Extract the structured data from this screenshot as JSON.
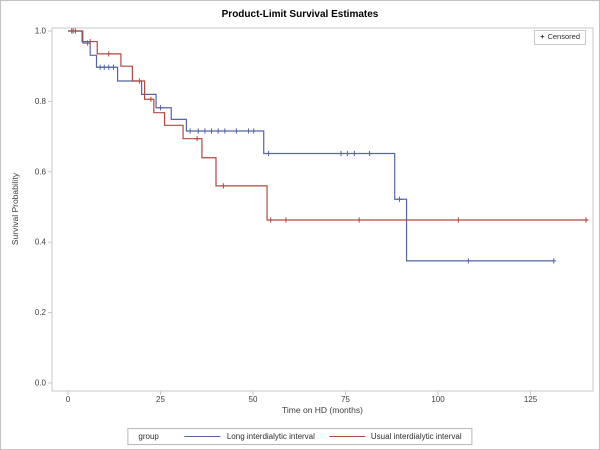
{
  "chart_data": {
    "type": "line",
    "subtype": "kaplan-meier-step",
    "title": "Product-Limit Survival Estimates",
    "xlabel": "Time on HD (months)",
    "ylabel": "Survival Probability",
    "x_ticks": {
      "values": [
        0,
        25,
        50,
        75,
        100,
        125
      ],
      "labels": [
        "0",
        "25",
        "50",
        "75",
        "100",
        "125"
      ]
    },
    "y_ticks": {
      "values": [
        0.0,
        0.2,
        0.4,
        0.6,
        0.8,
        1.0
      ],
      "labels": [
        "0.0",
        "0.2",
        "0.4",
        "0.6",
        "0.8",
        "1.0"
      ]
    },
    "xlim": [
      -4,
      142
    ],
    "ylim": [
      -0.02,
      1.02
    ],
    "grid": false,
    "legend_position": "bottom",
    "censored_legend": {
      "marker": "+",
      "label": "Censored"
    },
    "legend": {
      "title": "group"
    },
    "series": [
      {
        "name": "Long interdialytic interval",
        "color": "#5565A4",
        "start": [
          0,
          1.0
        ],
        "drops": [
          [
            4,
            0.966
          ],
          [
            6,
            0.931
          ],
          [
            7.7,
            0.897
          ],
          [
            13.4,
            0.858
          ],
          [
            19.9,
            0.82
          ],
          [
            23.8,
            0.782
          ],
          [
            27.9,
            0.749
          ],
          [
            32,
            0.716
          ],
          [
            52.9,
            0.652
          ],
          [
            88.3,
            0.522
          ],
          [
            91.5,
            0.347
          ]
        ],
        "end_time": 131.3,
        "censors": [
          [
            1,
            1.0
          ],
          [
            2,
            1.0
          ],
          [
            5.3,
            0.966
          ],
          [
            8.7,
            0.897
          ],
          [
            9.8,
            0.897
          ],
          [
            11,
            0.897
          ],
          [
            12.3,
            0.897
          ],
          [
            19.3,
            0.858
          ],
          [
            25,
            0.782
          ],
          [
            33,
            0.716
          ],
          [
            35.2,
            0.716
          ],
          [
            37,
            0.716
          ],
          [
            38.8,
            0.716
          ],
          [
            40.6,
            0.716
          ],
          [
            42.4,
            0.716
          ],
          [
            45.5,
            0.716
          ],
          [
            48.8,
            0.716
          ],
          [
            50.2,
            0.716
          ],
          [
            54.2,
            0.652
          ],
          [
            73.8,
            0.652
          ],
          [
            75.5,
            0.652
          ],
          [
            77.4,
            0.652
          ],
          [
            81.5,
            0.652
          ],
          [
            89.6,
            0.522
          ],
          [
            108.2,
            0.347
          ],
          [
            131.3,
            0.347
          ]
        ]
      },
      {
        "name": "Usual interdialytic interval",
        "color": "#B0493F",
        "start": [
          0,
          1.0
        ],
        "drops": [
          [
            3.8,
            0.97
          ],
          [
            7.9,
            0.935
          ],
          [
            14.3,
            0.9
          ],
          [
            17.4,
            0.858
          ],
          [
            20.7,
            0.806
          ],
          [
            23.2,
            0.768
          ],
          [
            26.1,
            0.732
          ],
          [
            31.1,
            0.694
          ],
          [
            36.2,
            0.64
          ],
          [
            40,
            0.56
          ],
          [
            53.8,
            0.463
          ]
        ],
        "end_time": 140.5,
        "censors": [
          [
            1.4,
            1.0
          ],
          [
            6,
            0.97
          ],
          [
            11,
            0.935
          ],
          [
            22.4,
            0.806
          ],
          [
            34.9,
            0.694
          ],
          [
            42,
            0.56
          ],
          [
            54.8,
            0.463
          ],
          [
            58.9,
            0.463
          ],
          [
            78.7,
            0.463
          ],
          [
            105.5,
            0.463
          ],
          [
            140,
            0.463
          ]
        ]
      }
    ]
  }
}
